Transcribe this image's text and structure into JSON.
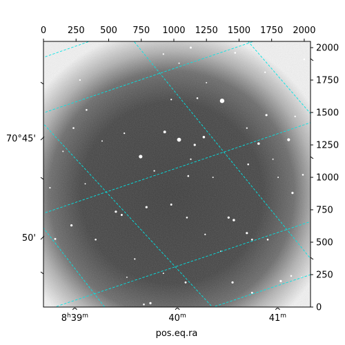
{
  "chart_data": {
    "type": "image",
    "image_kind": "grayscale astronomical image with celestial coordinate grid",
    "xlabel": "pos.eq.ra",
    "ylabel": "",
    "pixel_axes": {
      "x_range": [
        0,
        2048
      ],
      "y_range": [
        0,
        2048
      ],
      "x_ticks": [
        0,
        250,
        500,
        750,
        1000,
        1250,
        1500,
        1750,
        2000
      ],
      "y_ticks": [
        0,
        250,
        500,
        750,
        1000,
        1250,
        1500,
        1750,
        2000
      ],
      "x_tick_labels": [
        "0",
        "250",
        "500",
        "750",
        "1000",
        "1250",
        "1500",
        "1750",
        "2000"
      ],
      "y_tick_labels": [
        "0",
        "250",
        "500",
        "750",
        "1000",
        "1250",
        "1500",
        "1750",
        "2000"
      ]
    },
    "ra_ticks": [
      {
        "label_main": "8",
        "label_sup1": "h",
        "label_mid": "39",
        "label_sup2": "m",
        "x": 240
      },
      {
        "label_main": "",
        "label_sup1": "",
        "label_mid": "40",
        "label_sup2": "m",
        "x": 1027
      },
      {
        "label_main": "",
        "label_sup1": "",
        "label_mid": "41",
        "label_sup2": "m",
        "x": 1796
      }
    ],
    "dec_ticks": [
      {
        "label": "70°45'",
        "y": 1303
      },
      {
        "label": "50'",
        "y": 537
      }
    ],
    "grid": {
      "color": "#00e5e5",
      "style": "dashed",
      "lines_descending": [
        [
          [
            -300,
            1820
          ],
          [
            1500,
            2450
          ]
        ],
        [
          [
            -300,
            1395
          ],
          [
            2350,
            2300
          ]
        ],
        [
          [
            -300,
            620
          ],
          [
            2350,
            1525
          ]
        ],
        [
          [
            -300,
            -130
          ],
          [
            2350,
            760
          ]
        ],
        [
          [
            400,
            -300
          ],
          [
            2350,
            350
          ]
        ]
      ],
      "lines_ascending": [
        [
          [
            -300,
            1000
          ],
          [
            700,
            -300
          ]
        ],
        [
          [
            -300,
            1740
          ],
          [
            1570,
            -300
          ]
        ],
        [
          [
            450,
            2350
          ],
          [
            2350,
            0
          ]
        ],
        [
          [
            1310,
            2350
          ],
          [
            2350,
            1140
          ]
        ],
        [
          [
            1850,
            2350
          ],
          [
            2350,
            1940
          ]
        ]
      ]
    },
    "stars": [
      [
        1370,
        1590,
        20
      ],
      [
        1040,
        1290,
        18
      ],
      [
        745,
        1160,
        16
      ],
      [
        930,
        1350,
        12
      ],
      [
        1650,
        1260,
        11
      ],
      [
        1880,
        1290,
        13
      ],
      [
        1710,
        1480,
        10
      ],
      [
        1230,
        1310,
        11
      ],
      [
        555,
        735,
        10
      ],
      [
        600,
        710,
        9
      ],
      [
        790,
        770,
        10
      ],
      [
        980,
        790,
        9
      ],
      [
        1100,
        690,
        8
      ],
      [
        1420,
        690,
        10
      ],
      [
        1460,
        670,
        11
      ],
      [
        1560,
        570,
        10
      ],
      [
        1600,
        520,
        8
      ],
      [
        1720,
        520,
        8
      ],
      [
        400,
        520,
        8
      ],
      [
        215,
        630,
        10
      ],
      [
        90,
        525,
        9
      ],
      [
        1910,
        880,
        10
      ],
      [
        1990,
        1020,
        8
      ],
      [
        1450,
        190,
        10
      ],
      [
        1090,
        190,
        9
      ],
      [
        820,
        30,
        10
      ],
      [
        770,
        20,
        8
      ],
      [
        1600,
        110,
        9
      ],
      [
        1820,
        200,
        10
      ],
      [
        1900,
        240,
        8
      ],
      [
        1160,
        1250,
        10
      ],
      [
        1570,
        1100,
        8
      ],
      [
        330,
        1520,
        8
      ],
      [
        230,
        1380,
        8
      ],
      [
        1930,
        1470,
        7
      ],
      [
        1110,
        1010,
        8
      ],
      [
        1470,
        1960,
        8
      ],
      [
        1130,
        2000,
        9
      ],
      [
        1180,
        1610,
        8
      ],
      [
        920,
        1950,
        7
      ],
      [
        50,
        920,
        7
      ],
      [
        1560,
        1380,
        7
      ],
      [
        1700,
        1810,
        7
      ],
      [
        2000,
        1910,
        8
      ],
      [
        1130,
        1140,
        7
      ],
      [
        850,
        1050,
        7
      ],
      [
        620,
        1340,
        7
      ],
      [
        280,
        1750,
        7
      ],
      [
        450,
        1280,
        6
      ],
      [
        980,
        1600,
        7
      ],
      [
        1300,
        1000,
        6
      ],
      [
        1800,
        1000,
        6
      ],
      [
        700,
        370,
        7
      ],
      [
        1240,
        560,
        7
      ],
      [
        1360,
        430,
        6
      ],
      [
        920,
        260,
        6
      ],
      [
        640,
        230,
        6
      ],
      [
        1980,
        230,
        7
      ],
      [
        1760,
        1140,
        6
      ],
      [
        1250,
        1730,
        6
      ],
      [
        320,
        950,
        6
      ],
      [
        150,
        1200,
        6
      ],
      [
        1040,
        1880,
        6
      ]
    ]
  }
}
